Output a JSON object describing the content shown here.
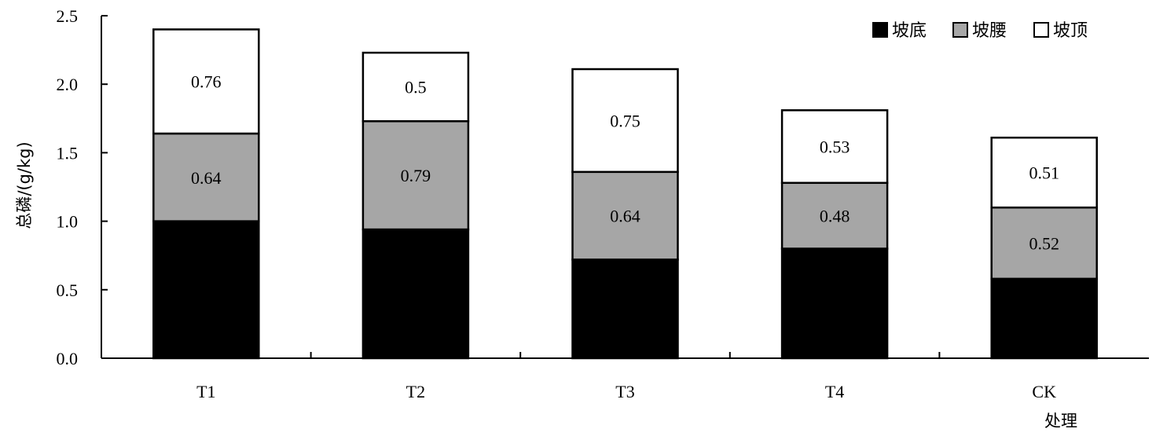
{
  "chart_data": {
    "type": "bar",
    "stacked": true,
    "categories": [
      "T1",
      "T2",
      "T3",
      "T4",
      "CK"
    ],
    "series": [
      {
        "name": "坡底",
        "values": [
          1.0,
          0.94,
          0.72,
          0.8,
          0.58
        ],
        "color": "#000000",
        "labels": [
          "",
          "",
          "",
          "",
          ""
        ]
      },
      {
        "name": "坡腰",
        "values": [
          0.64,
          0.79,
          0.64,
          0.48,
          0.52
        ],
        "color": "#a6a6a6",
        "labels": [
          "0.64",
          "0.79",
          "0.64",
          "0.48",
          "0.52"
        ]
      },
      {
        "name": "坡顶",
        "values": [
          0.76,
          0.5,
          0.75,
          0.53,
          0.51
        ],
        "color": "#ffffff",
        "labels": [
          "0.76",
          "0.5",
          "0.75",
          "0.53",
          "0.51"
        ]
      }
    ],
    "xlabel": "处理",
    "ylabel": "总磷/(g/kg)",
    "ylim": [
      0,
      2.5
    ],
    "yticks": [
      "0.0",
      "0.5",
      "1.0",
      "1.5",
      "2.0",
      "2.5"
    ],
    "grid": false,
    "legend_position": "top-right"
  }
}
